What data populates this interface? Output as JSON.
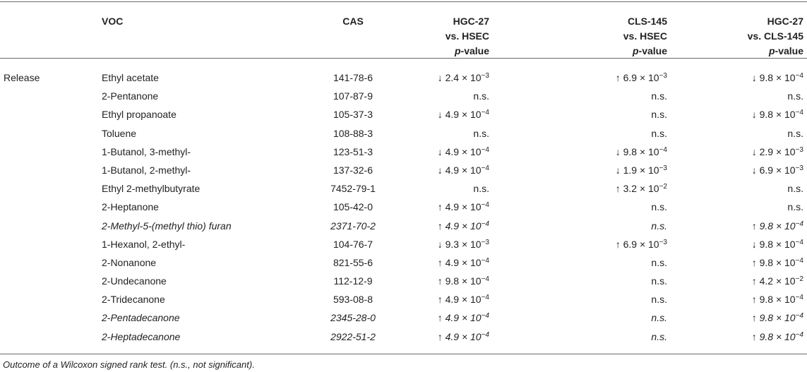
{
  "header": {
    "voc": "VOC",
    "cas": "CAS",
    "col1": [
      "HGC-27",
      "vs. HSEC",
      "p",
      "-value"
    ],
    "col2": [
      "CLS-145",
      "vs. HSEC",
      "p",
      "-value"
    ],
    "col3": [
      "HGC-27",
      "vs. CLS-145",
      "p",
      "-value"
    ]
  },
  "group_label": "Release",
  "rows": [
    {
      "voc": "Ethyl acetate",
      "cas": "141-78-6",
      "v1": "↓ 2.4 × 10",
      "e1": "−3",
      "v2": "↑ 6.9 × 10",
      "e2": "−3",
      "v3": "↓ 9.8 × 10",
      "e3": "−4",
      "italic": false
    },
    {
      "voc": "2-Pentanone",
      "cas": "107-87-9",
      "v1": "n.s.",
      "e1": "",
      "v2": "n.s.",
      "e2": "",
      "v3": "n.s.",
      "e3": "",
      "italic": false
    },
    {
      "voc": "Ethyl propanoate",
      "cas": "105-37-3",
      "v1": "↓ 4.9 × 10",
      "e1": "−4",
      "v2": "n.s.",
      "e2": "",
      "v3": "↓ 9.8 × 10",
      "e3": "−4",
      "italic": false
    },
    {
      "voc": "Toluene",
      "cas": "108-88-3",
      "v1": "n.s.",
      "e1": "",
      "v2": "n.s.",
      "e2": "",
      "v3": "n.s.",
      "e3": "",
      "italic": false
    },
    {
      "voc": "1-Butanol, 3-methyl-",
      "cas": "123-51-3",
      "v1": "↓ 4.9 × 10",
      "e1": "−4",
      "v2": "↓ 9.8 × 10",
      "e2": "−4",
      "v3": "↓ 2.9 × 10",
      "e3": "−3",
      "italic": false
    },
    {
      "voc": "1-Butanol, 2-methyl-",
      "cas": "137-32-6",
      "v1": "↓ 4.9 × 10",
      "e1": "−4",
      "v2": "↓ 1.9 × 10",
      "e2": "−3",
      "v3": "↓ 6.9 × 10",
      "e3": "−3",
      "italic": false
    },
    {
      "voc": "Ethyl 2-methylbutyrate",
      "cas": "7452-79-1",
      "v1": "n.s.",
      "e1": "",
      "v2": "↑ 3.2 × 10",
      "e2": "−2",
      "v3": "n.s.",
      "e3": "",
      "italic": false
    },
    {
      "voc": "2-Heptanone",
      "cas": "105-42-0",
      "v1": "↑ 4.9 × 10",
      "e1": "−4",
      "v2": "n.s.",
      "e2": "",
      "v3": "n.s.",
      "e3": "",
      "italic": false
    },
    {
      "voc": "2-Methyl-5-(methyl thio) furan",
      "cas": "2371-70-2",
      "v1": "↑ 4.9 × 10",
      "e1": "−4",
      "v2": "n.s.",
      "e2": "",
      "v3": "↑ 9.8 × 10",
      "e3": "−4",
      "italic": true
    },
    {
      "voc": "1-Hexanol, 2-ethyl-",
      "cas": "104-76-7",
      "v1": "↓ 9.3 × 10",
      "e1": "−3",
      "v2": "↑ 6.9 × 10",
      "e2": "−3",
      "v3": "↓ 9.8 × 10",
      "e3": "−4",
      "italic": false
    },
    {
      "voc": "2-Nonanone",
      "cas": "821-55-6",
      "v1": "↑ 4.9 × 10",
      "e1": "−4",
      "v2": "n.s.",
      "e2": "",
      "v3": "↑ 9.8 × 10",
      "e3": "−4",
      "italic": false
    },
    {
      "voc": "2-Undecanone",
      "cas": "112-12-9",
      "v1": "↑ 9.8 × 10",
      "e1": "−4",
      "v2": "n.s.",
      "e2": "",
      "v3": "↑ 4.2 × 10",
      "e3": "−2",
      "italic": false
    },
    {
      "voc": "2-Tridecanone",
      "cas": "593-08-8",
      "v1": "↑ 4.9 × 10",
      "e1": "−4",
      "v2": "n.s.",
      "e2": "",
      "v3": "↑ 9.8 × 10",
      "e3": "−4",
      "italic": false
    },
    {
      "voc": "2-Pentadecanone",
      "cas": "2345-28-0",
      "v1": "↑ 4.9 × 10",
      "e1": "−4",
      "v2": "n.s.",
      "e2": "",
      "v3": "↑ 9.8 × 10",
      "e3": "−4",
      "italic": true
    },
    {
      "voc": "2-Heptadecanone",
      "cas": "2922-51-2",
      "v1": "↑ 4.9 × 10",
      "e1": "−4",
      "v2": "n.s.",
      "e2": "",
      "v3": "↑ 9.8 × 10",
      "e3": "−4",
      "italic": true
    }
  ],
  "footnote": "Outcome of a Wilcoxon signed rank test. (n.s., not significant)."
}
